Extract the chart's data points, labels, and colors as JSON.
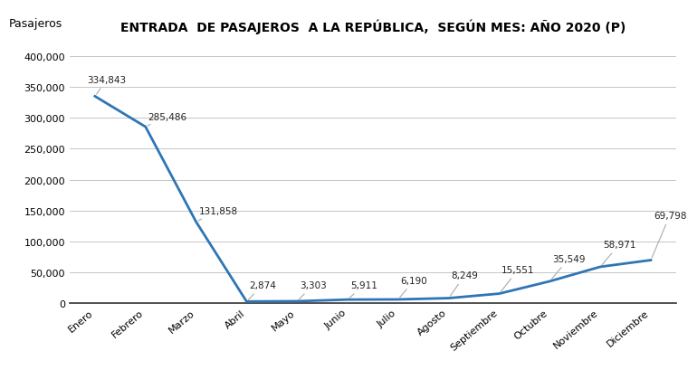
{
  "title": "ENTRADA  DE PASAJEROS  A LA REPÚBLICA,  SEGÚN MES: AÑO 2020 (P)",
  "ylabel": "Pasajeros",
  "months": [
    "Enero",
    "Febrero",
    "Marzo",
    "Abril",
    "Mayo",
    "Junio",
    "Julio",
    "Agosto",
    "Septiembre",
    "Octubre",
    "Noviembre",
    "Diciembre"
  ],
  "values": [
    334843,
    285486,
    131858,
    2874,
    3303,
    5911,
    6190,
    8249,
    15551,
    35549,
    58971,
    69798
  ],
  "line_color": "#2E75B6",
  "annotation_color": "#222222",
  "background_color": "#FFFFFF",
  "grid_color": "#BBBBBB",
  "ylim": [
    0,
    420000
  ],
  "yticks": [
    0,
    50000,
    100000,
    150000,
    200000,
    250000,
    300000,
    350000,
    400000
  ],
  "title_fontsize": 10,
  "label_fontsize": 9,
  "tick_fontsize": 8,
  "annotation_fontsize": 7.5,
  "ann_data": [
    [
      0,
      334843,
      "334,843",
      -0.15,
      355000
    ],
    [
      1,
      285486,
      "285,486",
      1.05,
      295000
    ],
    [
      2,
      131858,
      "131,858",
      2.05,
      142000
    ],
    [
      3,
      2874,
      "2,874",
      3.05,
      22000
    ],
    [
      4,
      3303,
      "3,303",
      4.05,
      22000
    ],
    [
      5,
      5911,
      "5,911",
      5.05,
      22000
    ],
    [
      6,
      6190,
      "6,190",
      6.05,
      30000
    ],
    [
      7,
      8249,
      "8,249",
      7.05,
      38000
    ],
    [
      8,
      15551,
      "15,551",
      8.05,
      47000
    ],
    [
      9,
      35549,
      "35,549",
      9.05,
      65000
    ],
    [
      10,
      58971,
      "58,971",
      10.05,
      88000
    ],
    [
      11,
      69798,
      "69,798",
      11.05,
      135000
    ]
  ]
}
